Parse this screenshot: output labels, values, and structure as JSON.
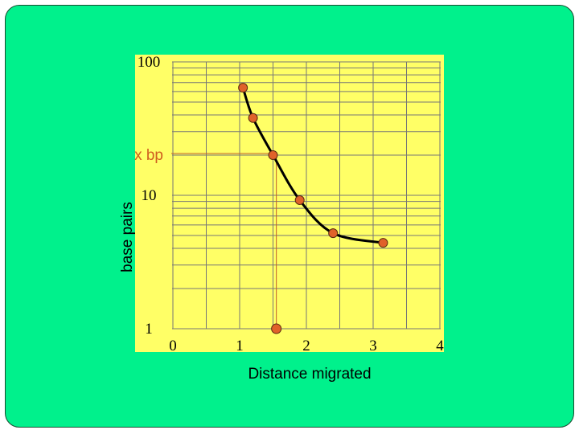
{
  "chart_data": {
    "type": "line",
    "y_scale": "log",
    "xlim": [
      0,
      4
    ],
    "ylim": [
      1,
      100
    ],
    "x_ticks": [
      "0",
      "1",
      "2",
      "3",
      "4"
    ],
    "y_ticks": [
      "1",
      "10",
      "100"
    ],
    "xlabel": "Distance migrated",
    "ylabel": "base pairs",
    "grid": true,
    "series": [
      {
        "values": [
          {
            "x": 1.05,
            "y": 64
          },
          {
            "x": 1.2,
            "y": 38
          },
          {
            "x": 1.5,
            "y": 20
          },
          {
            "x": 1.9,
            "y": 9.2
          },
          {
            "x": 2.4,
            "y": 5.2
          },
          {
            "x": 3.15,
            "y": 4.4
          }
        ]
      }
    ],
    "unknown": {
      "label": "x bp",
      "x": 1.55,
      "y": 1
    },
    "colors": {
      "plot_bg": "#ffff66",
      "point": "#e0622a",
      "guide": "#c0602a",
      "label": "#d06020",
      "curve": "#000000",
      "grid": "#777777"
    }
  }
}
